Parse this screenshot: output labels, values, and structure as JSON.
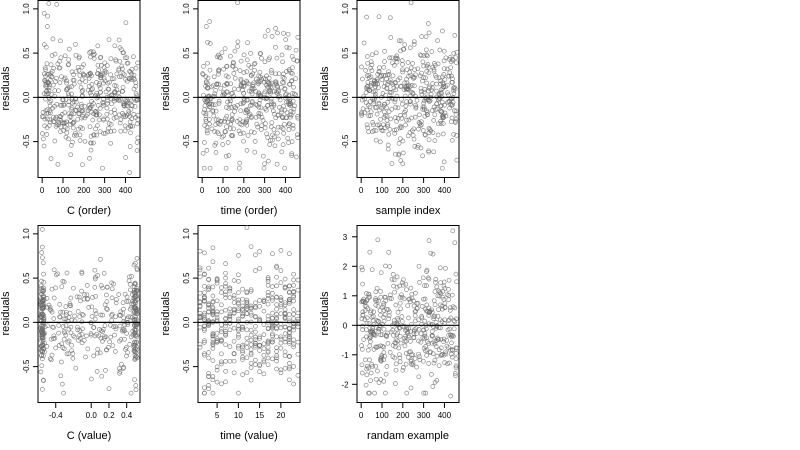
{
  "chart_data": [
    {
      "type": "scatter",
      "xlabel": "C (order)",
      "ylabel": "residuals",
      "xlim": [
        -20,
        470
      ],
      "ylim": [
        -0.9,
        1.1
      ],
      "xticks": [
        0,
        100,
        200,
        300,
        400
      ],
      "xtick_labels": [
        "0",
        "100",
        "200",
        "300",
        "400"
      ],
      "yticks": [
        -0.5,
        0.0,
        0.5,
        1.0
      ],
      "ytick_labels": [
        "-0.5",
        "0.0",
        "0.5",
        "1.0"
      ],
      "ytick_rotated": true,
      "hline": 0,
      "grid": false,
      "n_points": 460,
      "x_min": 0,
      "x_max": 460,
      "y_spread": 0.3,
      "seed": 11,
      "points_sample": [
        [
          10,
          0.95
        ],
        [
          25,
          0.8
        ],
        [
          70,
          1.05
        ],
        [
          160,
          0.6
        ],
        [
          290,
          -0.8
        ],
        [
          420,
          -0.85
        ]
      ]
    },
    {
      "type": "scatter",
      "xlabel": "time (order)",
      "ylabel": "residuals",
      "xlim": [
        -20,
        470
      ],
      "ylim": [
        -0.9,
        1.1
      ],
      "xticks": [
        0,
        100,
        200,
        300,
        400
      ],
      "xtick_labels": [
        "0",
        "100",
        "200",
        "300",
        "400"
      ],
      "yticks": [
        -0.5,
        0.0,
        0.5,
        1.0
      ],
      "ytick_labels": [
        "-0.5",
        "0.0",
        "0.5",
        "1.0"
      ],
      "ytick_rotated": true,
      "hline": 0,
      "grid": false,
      "n_points": 460,
      "x_min": 0,
      "x_max": 460,
      "y_spread": 0.3,
      "seed": 23,
      "points_sample": [
        [
          170,
          1.07
        ],
        [
          20,
          0.8
        ],
        [
          10,
          -0.8
        ],
        [
          300,
          -0.75
        ],
        [
          110,
          0.55
        ]
      ]
    },
    {
      "type": "scatter",
      "xlabel": "sample index",
      "ylabel": "residuals",
      "xlim": [
        -20,
        470
      ],
      "ylim": [
        -0.9,
        1.1
      ],
      "xticks": [
        0,
        100,
        200,
        300,
        400
      ],
      "xtick_labels": [
        "0",
        "100",
        "200",
        "300",
        "400"
      ],
      "yticks": [
        -0.5,
        0.0,
        0.5,
        1.0
      ],
      "ytick_labels": [
        "-0.5",
        "0.0",
        "0.5",
        "1.0"
      ],
      "ytick_rotated": true,
      "hline": 0,
      "grid": false,
      "n_points": 460,
      "x_min": 0,
      "x_max": 460,
      "y_spread": 0.3,
      "seed": 37,
      "points_sample": [
        [
          240,
          1.07
        ],
        [
          140,
          0.9
        ],
        [
          200,
          -0.75
        ],
        [
          390,
          -0.8
        ],
        [
          450,
          0.7
        ]
      ]
    },
    {
      "type": "scatter",
      "xlabel": "C (value)",
      "ylabel": "residuals",
      "xlim": [
        -0.6,
        0.55
      ],
      "ylim": [
        -0.9,
        1.1
      ],
      "xticks": [
        -0.4,
        0.0,
        0.2,
        0.4
      ],
      "xtick_labels": [
        "-0.4",
        "0.0",
        "0.2",
        "0.4"
      ],
      "yticks": [
        -0.5,
        0.0,
        0.5,
        1.0
      ],
      "ytick_labels": [
        "-0.5",
        "0.0",
        "0.5",
        "1.0"
      ],
      "ytick_rotated": true,
      "hline": 0,
      "grid": false,
      "n_points": 460,
      "x_min": -0.55,
      "x_max": 0.5,
      "y_spread": 0.3,
      "clusters": [
        -0.55,
        0.5
      ],
      "seed": 51,
      "points_sample": [
        [
          -0.55,
          1.05
        ],
        [
          -0.55,
          0.85
        ],
        [
          0.2,
          -0.75
        ],
        [
          0.45,
          -0.8
        ]
      ]
    },
    {
      "type": "scatter",
      "xlabel": "time (value)",
      "ylabel": "residuals",
      "xlim": [
        0.5,
        24.5
      ],
      "ylim": [
        -0.9,
        1.1
      ],
      "xticks": [
        5,
        10,
        15,
        20
      ],
      "xtick_labels": [
        "5",
        "10",
        "15",
        "20"
      ],
      "yticks": [
        -0.5,
        0.0,
        0.5,
        1.0
      ],
      "ytick_labels": [
        "-0.5",
        "0.0",
        "0.5",
        "1.0"
      ],
      "ytick_rotated": true,
      "hline": 0,
      "grid": false,
      "n_points": 460,
      "x_min": 1,
      "x_max": 24,
      "x_integer": true,
      "y_spread": 0.3,
      "seed": 67,
      "points_sample": [
        [
          12,
          1.07
        ],
        [
          2,
          -0.8
        ],
        [
          3,
          -0.75
        ],
        [
          24,
          -0.6
        ]
      ]
    },
    {
      "type": "scatter",
      "xlabel": "randam example",
      "ylabel": "residuals",
      "xlim": [
        -20,
        470
      ],
      "ylim": [
        -2.6,
        3.4
      ],
      "xticks": [
        0,
        100,
        200,
        300,
        400
      ],
      "xtick_labels": [
        "0",
        "100",
        "200",
        "300",
        "400"
      ],
      "yticks": [
        -2,
        -1,
        0,
        1,
        2,
        3
      ],
      "ytick_labels": [
        "-2",
        "-1",
        "0",
        "1",
        "2",
        "3"
      ],
      "ytick_rotated": false,
      "hline": 0,
      "grid": false,
      "n_points": 460,
      "x_min": 0,
      "x_max": 460,
      "y_spread": 1.0,
      "seed": 83,
      "points_sample": [
        [
          440,
          3.2
        ],
        [
          80,
          2.9
        ],
        [
          450,
          2.8
        ],
        [
          40,
          -2.3
        ],
        [
          430,
          -2.4
        ]
      ]
    }
  ]
}
